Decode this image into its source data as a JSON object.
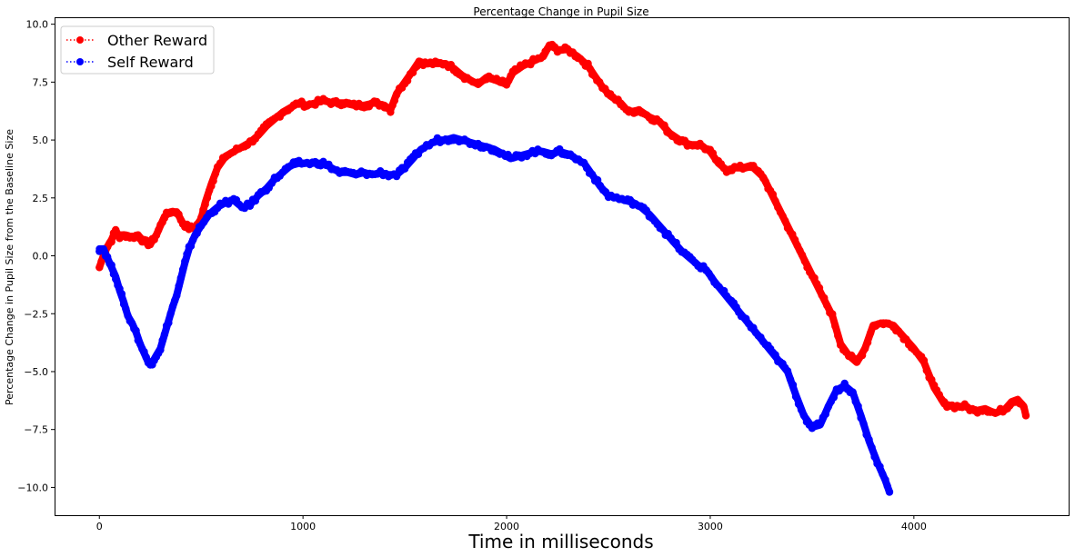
{
  "chart_data": {
    "type": "line",
    "title": "Percentage Change in Pupil Size",
    "xlabel": "Time in milliseconds",
    "ylabel": "Percentage Change in Pupil Size from the Baseline Size",
    "xlim": [
      -220,
      4760
    ],
    "ylim": [
      -11.2,
      10.3
    ],
    "xticks": [
      0,
      1000,
      2000,
      3000,
      4000
    ],
    "xtick_labels": [
      "0",
      "1000",
      "2000",
      "3000",
      "4000"
    ],
    "yticks": [
      -10.0,
      -7.5,
      -5.0,
      -2.5,
      0.0,
      2.5,
      5.0,
      7.5,
      10.0
    ],
    "ytick_labels": [
      "−10.0",
      "−7.5",
      "−5.0",
      "−2.5",
      "0.0",
      "2.5",
      "5.0",
      "7.5",
      "10.0"
    ],
    "grid": false,
    "legend_position": "top-left",
    "series": [
      {
        "name": "Other Reward",
        "color": "#ff0000",
        "points": [
          [
            0,
            -0.5
          ],
          [
            20,
            0.0
          ],
          [
            40,
            0.4
          ],
          [
            60,
            0.7
          ],
          [
            80,
            1.1
          ],
          [
            100,
            0.8
          ],
          [
            130,
            0.9
          ],
          [
            160,
            0.8
          ],
          [
            190,
            0.9
          ],
          [
            220,
            0.6
          ],
          [
            250,
            0.5
          ],
          [
            280,
            0.9
          ],
          [
            300,
            1.3
          ],
          [
            320,
            1.7
          ],
          [
            350,
            1.9
          ],
          [
            380,
            1.9
          ],
          [
            410,
            1.4
          ],
          [
            440,
            1.2
          ],
          [
            470,
            1.2
          ],
          [
            500,
            1.6
          ],
          [
            520,
            2.3
          ],
          [
            550,
            3.1
          ],
          [
            580,
            3.8
          ],
          [
            620,
            4.3
          ],
          [
            660,
            4.5
          ],
          [
            700,
            4.7
          ],
          [
            740,
            4.9
          ],
          [
            780,
            5.2
          ],
          [
            820,
            5.6
          ],
          [
            860,
            5.9
          ],
          [
            900,
            6.2
          ],
          [
            940,
            6.4
          ],
          [
            980,
            6.6
          ],
          [
            1020,
            6.5
          ],
          [
            1060,
            6.6
          ],
          [
            1100,
            6.7
          ],
          [
            1150,
            6.6
          ],
          [
            1200,
            6.6
          ],
          [
            1250,
            6.5
          ],
          [
            1300,
            6.5
          ],
          [
            1350,
            6.6
          ],
          [
            1400,
            6.5
          ],
          [
            1430,
            6.3
          ],
          [
            1460,
            7.0
          ],
          [
            1500,
            7.5
          ],
          [
            1540,
            8.0
          ],
          [
            1570,
            8.4
          ],
          [
            1600,
            8.3
          ],
          [
            1650,
            8.3
          ],
          [
            1700,
            8.3
          ],
          [
            1740,
            8.1
          ],
          [
            1780,
            7.8
          ],
          [
            1820,
            7.6
          ],
          [
            1860,
            7.4
          ],
          [
            1900,
            7.7
          ],
          [
            1940,
            7.6
          ],
          [
            1970,
            7.5
          ],
          [
            2000,
            7.4
          ],
          [
            2030,
            7.9
          ],
          [
            2080,
            8.2
          ],
          [
            2130,
            8.4
          ],
          [
            2180,
            8.6
          ],
          [
            2210,
            9.1
          ],
          [
            2250,
            8.9
          ],
          [
            2300,
            8.9
          ],
          [
            2350,
            8.6
          ],
          [
            2400,
            8.2
          ],
          [
            2430,
            7.8
          ],
          [
            2470,
            7.3
          ],
          [
            2510,
            6.9
          ],
          [
            2560,
            6.6
          ],
          [
            2600,
            6.2
          ],
          [
            2650,
            6.3
          ],
          [
            2700,
            6.0
          ],
          [
            2750,
            5.8
          ],
          [
            2800,
            5.3
          ],
          [
            2850,
            5.0
          ],
          [
            2900,
            4.8
          ],
          [
            2950,
            4.8
          ],
          [
            3000,
            4.5
          ],
          [
            3040,
            4.0
          ],
          [
            3080,
            3.7
          ],
          [
            3120,
            3.8
          ],
          [
            3160,
            3.8
          ],
          [
            3200,
            3.9
          ],
          [
            3260,
            3.4
          ],
          [
            3560,
            -1.9
          ],
          [
            3600,
            -2.6
          ],
          [
            3640,
            -3.8
          ],
          [
            3680,
            -4.3
          ],
          [
            3720,
            -4.6
          ],
          [
            3760,
            -4.0
          ],
          [
            3800,
            -3.0
          ],
          [
            3850,
            -2.9
          ],
          [
            3900,
            -3.0
          ],
          [
            3950,
            -3.5
          ],
          [
            4000,
            -4.0
          ],
          [
            4050,
            -4.6
          ],
          [
            4100,
            -5.7
          ],
          [
            4150,
            -6.4
          ],
          [
            4200,
            -6.5
          ],
          [
            4250,
            -6.5
          ],
          [
            4300,
            -6.7
          ],
          [
            4350,
            -6.6
          ],
          [
            4400,
            -6.8
          ],
          [
            4450,
            -6.6
          ],
          [
            4480,
            -6.3
          ],
          [
            4510,
            -6.2
          ],
          [
            4540,
            -6.5
          ],
          [
            4550,
            -6.9
          ]
        ]
      },
      {
        "name": "Self Reward",
        "color": "#0000ff",
        "points": [
          [
            0,
            0.3
          ],
          [
            20,
            0.3
          ],
          [
            40,
            -0.1
          ],
          [
            60,
            -0.5
          ],
          [
            80,
            -0.9
          ],
          [
            100,
            -1.5
          ],
          [
            120,
            -2.0
          ],
          [
            140,
            -2.6
          ],
          [
            160,
            -2.9
          ],
          [
            180,
            -3.3
          ],
          [
            200,
            -3.8
          ],
          [
            220,
            -4.2
          ],
          [
            240,
            -4.6
          ],
          [
            260,
            -4.6
          ],
          [
            280,
            -4.3
          ],
          [
            300,
            -4.0
          ],
          [
            320,
            -3.4
          ],
          [
            340,
            -2.8
          ],
          [
            360,
            -2.2
          ],
          [
            380,
            -1.7
          ],
          [
            400,
            -1.0
          ],
          [
            420,
            -0.3
          ],
          [
            440,
            0.3
          ],
          [
            470,
            0.9
          ],
          [
            500,
            1.3
          ],
          [
            540,
            1.8
          ],
          [
            580,
            2.1
          ],
          [
            620,
            2.3
          ],
          [
            660,
            2.4
          ],
          [
            700,
            2.1
          ],
          [
            740,
            2.2
          ],
          [
            780,
            2.6
          ],
          [
            820,
            2.9
          ],
          [
            860,
            3.3
          ],
          [
            900,
            3.6
          ],
          [
            940,
            3.9
          ],
          [
            980,
            4.0
          ],
          [
            1020,
            4.0
          ],
          [
            1060,
            4.0
          ],
          [
            1100,
            4.0
          ],
          [
            1140,
            3.8
          ],
          [
            1180,
            3.6
          ],
          [
            1220,
            3.6
          ],
          [
            1260,
            3.5
          ],
          [
            1300,
            3.6
          ],
          [
            1340,
            3.5
          ],
          [
            1380,
            3.6
          ],
          [
            1420,
            3.5
          ],
          [
            1460,
            3.5
          ],
          [
            1500,
            3.8
          ],
          [
            1540,
            4.2
          ],
          [
            1580,
            4.6
          ],
          [
            1620,
            4.8
          ],
          [
            1660,
            5.0
          ],
          [
            1700,
            5.0
          ],
          [
            1740,
            5.1
          ],
          [
            1780,
            5.0
          ],
          [
            1820,
            4.9
          ],
          [
            1860,
            4.8
          ],
          [
            1900,
            4.7
          ],
          [
            1940,
            4.6
          ],
          [
            1980,
            4.4
          ],
          [
            2020,
            4.2
          ],
          [
            2060,
            4.3
          ],
          [
            2100,
            4.4
          ],
          [
            2140,
            4.5
          ],
          [
            2180,
            4.5
          ],
          [
            2220,
            4.4
          ],
          [
            2260,
            4.5
          ],
          [
            2300,
            4.4
          ],
          [
            2340,
            4.2
          ],
          [
            2380,
            4.0
          ],
          [
            2420,
            3.5
          ],
          [
            2460,
            3.0
          ],
          [
            2500,
            2.6
          ],
          [
            2540,
            2.5
          ],
          [
            2580,
            2.4
          ],
          [
            2620,
            2.3
          ],
          [
            2660,
            2.1
          ],
          [
            2700,
            1.8
          ],
          [
            2740,
            1.4
          ],
          [
            2780,
            1.0
          ],
          [
            2820,
            0.6
          ],
          [
            2860,
            0.2
          ],
          [
            2900,
            -0.1
          ],
          [
            2940,
            -0.4
          ],
          [
            2980,
            -0.6
          ],
          [
            3020,
            -1.1
          ],
          [
            3380,
            -5.0
          ],
          [
            3420,
            -6.0
          ],
          [
            3460,
            -6.9
          ],
          [
            3500,
            -7.4
          ],
          [
            3540,
            -7.3
          ],
          [
            3580,
            -6.5
          ],
          [
            3620,
            -5.8
          ],
          [
            3660,
            -5.6
          ],
          [
            3700,
            -5.9
          ],
          [
            3740,
            -6.9
          ],
          [
            3780,
            -8.0
          ],
          [
            3820,
            -8.9
          ],
          [
            3860,
            -9.7
          ],
          [
            3880,
            -10.2
          ]
        ]
      }
    ]
  }
}
